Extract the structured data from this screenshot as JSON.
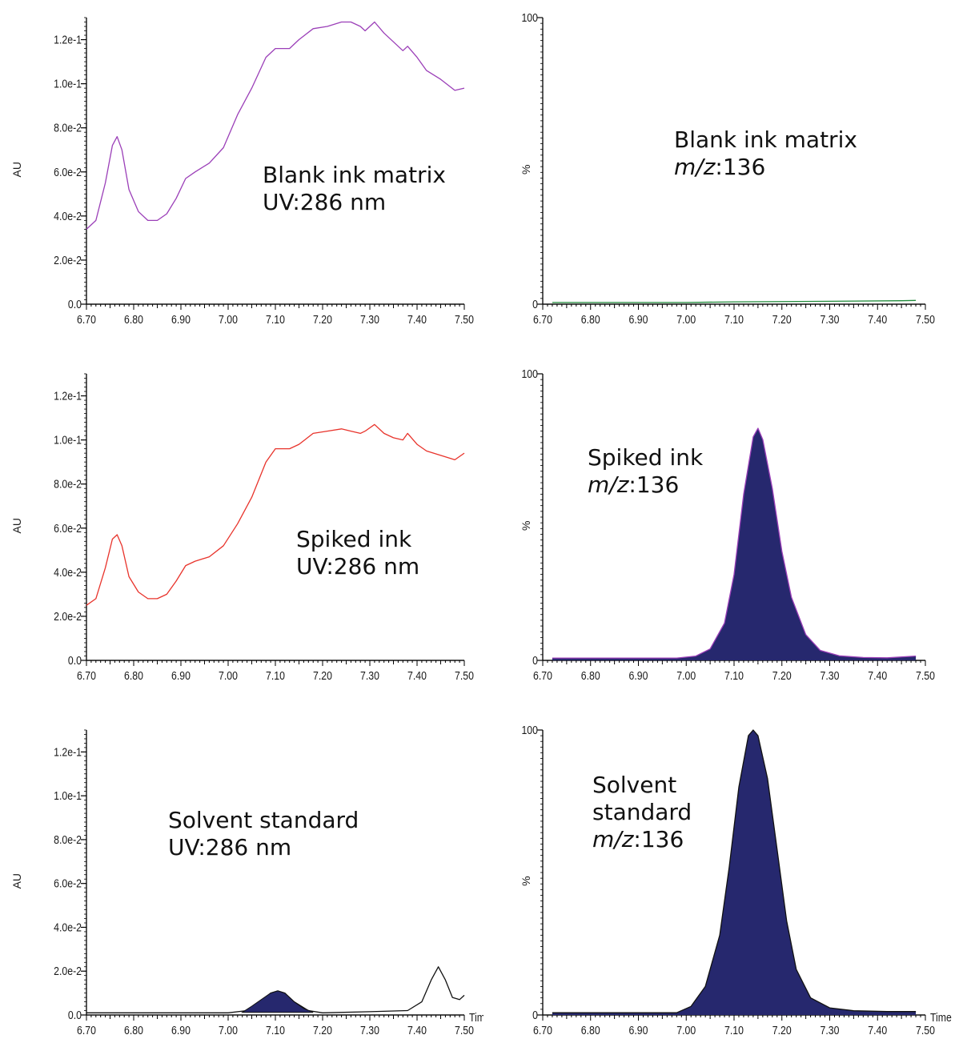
{
  "colors": {
    "blank_uv": "#9b3fb8",
    "spiked_uv": "#e8332b",
    "blank_ms": "#1f8a3a",
    "spiked_ms_outline": "#9b3fb8",
    "peak_fill": "#26286e",
    "black_trace": "#111111",
    "axis": "#000000"
  },
  "chart_data": [
    {
      "id": "uv-blank",
      "type": "line",
      "annotation": [
        "Blank ink matrix",
        "UV:286 nm"
      ],
      "ylabel": "AU",
      "xlabel": "",
      "xlim": [
        6.7,
        7.5
      ],
      "ylim": [
        0,
        0.13
      ],
      "x_ticks": [
        "6.70",
        "6.80",
        "6.90",
        "7.00",
        "7.10",
        "7.20",
        "7.30",
        "7.40",
        "7.50"
      ],
      "y_ticks": [
        "0.0",
        "2.0e-2",
        "4.0e-2",
        "6.0e-2",
        "8.0e-2",
        "1.0e-1",
        "1.2e-1"
      ],
      "y_tick_values": [
        0,
        0.02,
        0.04,
        0.06,
        0.08,
        0.1,
        0.12
      ],
      "series": [
        {
          "color_key": "blank_uv",
          "x": [
            6.7,
            6.72,
            6.74,
            6.755,
            6.765,
            6.775,
            6.79,
            6.81,
            6.83,
            6.85,
            6.87,
            6.89,
            6.91,
            6.93,
            6.96,
            6.99,
            7.02,
            7.05,
            7.08,
            7.1,
            7.13,
            7.15,
            7.18,
            7.21,
            7.24,
            7.26,
            7.28,
            7.29,
            7.31,
            7.33,
            7.35,
            7.37,
            7.38,
            7.4,
            7.42,
            7.45,
            7.48,
            7.5
          ],
          "y": [
            0.034,
            0.038,
            0.055,
            0.072,
            0.076,
            0.07,
            0.052,
            0.042,
            0.038,
            0.038,
            0.041,
            0.048,
            0.057,
            0.06,
            0.064,
            0.071,
            0.086,
            0.098,
            0.112,
            0.116,
            0.116,
            0.12,
            0.125,
            0.126,
            0.128,
            0.128,
            0.126,
            0.124,
            0.128,
            0.123,
            0.119,
            0.115,
            0.117,
            0.112,
            0.106,
            0.102,
            0.097,
            0.098
          ]
        }
      ]
    },
    {
      "id": "ms-blank",
      "type": "line",
      "annotation": [
        "Blank ink matrix",
        "m/z",
        ":136"
      ],
      "ylabel": "%",
      "xlabel": "",
      "xlim": [
        6.7,
        7.5
      ],
      "ylim": [
        0,
        100
      ],
      "x_ticks": [
        "6.70",
        "6.80",
        "6.90",
        "7.00",
        "7.10",
        "7.20",
        "7.30",
        "7.40",
        "7.50"
      ],
      "y_ticks": [
        "0",
        "100"
      ],
      "y_tick_values": [
        0,
        100
      ],
      "series": [
        {
          "color_key": "blank_ms",
          "x": [
            6.72,
            7.0,
            7.1,
            7.3,
            7.45,
            7.48
          ],
          "y": [
            0.6,
            0.6,
            0.8,
            1.0,
            1.2,
            1.3
          ]
        }
      ]
    },
    {
      "id": "uv-spiked",
      "type": "line",
      "annotation": [
        "Spiked ink",
        "UV:286 nm"
      ],
      "ylabel": "AU",
      "xlabel": "",
      "xlim": [
        6.7,
        7.5
      ],
      "ylim": [
        0,
        0.13
      ],
      "x_ticks": [
        "6.70",
        "6.80",
        "6.90",
        "7.00",
        "7.10",
        "7.20",
        "7.30",
        "7.40",
        "7.50"
      ],
      "y_ticks": [
        "0.0",
        "2.0e-2",
        "4.0e-2",
        "6.0e-2",
        "8.0e-2",
        "1.0e-1",
        "1.2e-1"
      ],
      "y_tick_values": [
        0,
        0.02,
        0.04,
        0.06,
        0.08,
        0.1,
        0.12
      ],
      "series": [
        {
          "color_key": "spiked_uv",
          "x": [
            6.7,
            6.72,
            6.74,
            6.755,
            6.765,
            6.775,
            6.79,
            6.81,
            6.83,
            6.85,
            6.87,
            6.89,
            6.91,
            6.93,
            6.96,
            6.99,
            7.02,
            7.05,
            7.08,
            7.1,
            7.13,
            7.15,
            7.18,
            7.21,
            7.24,
            7.26,
            7.28,
            7.29,
            7.31,
            7.33,
            7.35,
            7.37,
            7.38,
            7.4,
            7.42,
            7.45,
            7.48,
            7.5
          ],
          "y": [
            0.025,
            0.028,
            0.042,
            0.055,
            0.057,
            0.052,
            0.038,
            0.031,
            0.028,
            0.028,
            0.03,
            0.036,
            0.043,
            0.045,
            0.047,
            0.052,
            0.062,
            0.074,
            0.09,
            0.096,
            0.096,
            0.098,
            0.103,
            0.104,
            0.105,
            0.104,
            0.103,
            0.104,
            0.107,
            0.103,
            0.101,
            0.1,
            0.103,
            0.098,
            0.095,
            0.093,
            0.091,
            0.094
          ]
        }
      ]
    },
    {
      "id": "ms-spiked",
      "type": "area",
      "annotation": [
        "Spiked ink",
        "m/z",
        ":136"
      ],
      "ylabel": "%",
      "xlabel": "",
      "xlim": [
        6.7,
        7.5
      ],
      "ylim": [
        0,
        100
      ],
      "x_ticks": [
        "6.70",
        "6.80",
        "6.90",
        "7.00",
        "7.10",
        "7.20",
        "7.30",
        "7.40",
        "7.50"
      ],
      "y_ticks": [
        "0",
        "100"
      ],
      "y_tick_values": [
        0,
        100
      ],
      "series": [
        {
          "color_key": "spiked_ms_outline",
          "fill_key": "peak_fill",
          "x": [
            6.72,
            6.98,
            7.02,
            7.05,
            7.08,
            7.1,
            7.12,
            7.14,
            7.15,
            7.16,
            7.18,
            7.2,
            7.22,
            7.25,
            7.28,
            7.32,
            7.37,
            7.42,
            7.48
          ],
          "y": [
            0.8,
            0.8,
            1.5,
            4.0,
            13,
            30,
            58,
            78,
            81,
            77,
            60,
            38,
            22,
            9,
            3.5,
            1.6,
            1.0,
            0.9,
            1.5
          ]
        }
      ]
    },
    {
      "id": "uv-solvent",
      "type": "line",
      "annotation": [
        "Solvent standard",
        "UV:286 nm"
      ],
      "ylabel": "AU",
      "xlabel": "Time",
      "xlim": [
        6.7,
        7.5
      ],
      "ylim": [
        0,
        0.13
      ],
      "x_ticks": [
        "6.70",
        "6.80",
        "6.90",
        "7.00",
        "7.10",
        "7.20",
        "7.30",
        "7.40",
        "7.50"
      ],
      "y_ticks": [
        "0.0",
        "2.0e-2",
        "4.0e-2",
        "6.0e-2",
        "8.0e-2",
        "1.0e-1",
        "1.2e-1"
      ],
      "y_tick_values": [
        0,
        0.02,
        0.04,
        0.06,
        0.08,
        0.1,
        0.12
      ],
      "series": [
        {
          "color_key": "black_trace",
          "x": [
            6.7,
            7.0,
            7.04,
            7.07,
            7.09,
            7.105,
            7.12,
            7.14,
            7.17,
            7.2,
            7.3,
            7.38,
            7.41,
            7.43,
            7.445,
            7.46,
            7.475,
            7.49,
            7.5
          ],
          "y": [
            0.001,
            0.001,
            0.002,
            0.006,
            0.01,
            0.011,
            0.01,
            0.006,
            0.002,
            0.001,
            0.0015,
            0.002,
            0.006,
            0.016,
            0.022,
            0.016,
            0.008,
            0.007,
            0.009
          ]
        }
      ],
      "filled_peak": {
        "fill_key": "peak_fill",
        "x": [
          7.03,
          7.05,
          7.07,
          7.09,
          7.105,
          7.12,
          7.14,
          7.16,
          7.18
        ],
        "y": [
          0.0012,
          0.004,
          0.007,
          0.01,
          0.011,
          0.01,
          0.006,
          0.003,
          0.0012
        ]
      }
    },
    {
      "id": "ms-solvent",
      "type": "area",
      "annotation": [
        "Solvent",
        "standard",
        "m/z",
        ":136"
      ],
      "ylabel": "%",
      "xlabel": "Time",
      "xlim": [
        6.7,
        7.5
      ],
      "ylim": [
        0,
        100
      ],
      "x_ticks": [
        "6.70",
        "6.80",
        "6.90",
        "7.00",
        "7.10",
        "7.20",
        "7.30",
        "7.40",
        "7.50"
      ],
      "y_ticks": [
        "0",
        "100"
      ],
      "y_tick_values": [
        0,
        100
      ],
      "series": [
        {
          "color_key": "black_trace",
          "fill_key": "peak_fill",
          "x": [
            6.72,
            6.98,
            7.01,
            7.04,
            7.07,
            7.09,
            7.11,
            7.13,
            7.14,
            7.15,
            7.17,
            7.19,
            7.21,
            7.23,
            7.26,
            7.3,
            7.35,
            7.42,
            7.48
          ],
          "y": [
            0.8,
            0.8,
            3,
            10,
            28,
            52,
            80,
            98,
            100,
            98,
            83,
            58,
            33,
            16,
            6,
            2.5,
            1.5,
            1.2,
            1.2
          ]
        }
      ]
    }
  ]
}
